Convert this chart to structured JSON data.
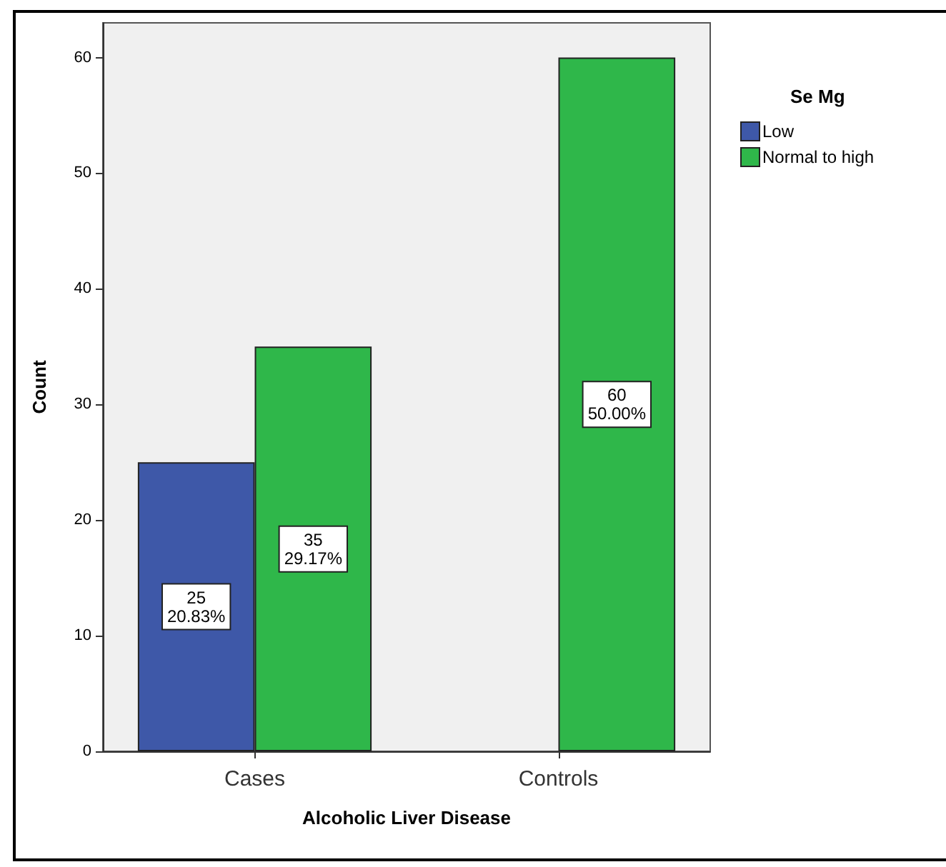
{
  "chart_data": {
    "type": "bar",
    "xlabel": "Alcoholic Liver Disease",
    "ylabel": "Count",
    "legend_title": "Se Mg",
    "categories": [
      "Cases",
      "Controls"
    ],
    "series": [
      {
        "name": "Low",
        "color": "#3e58a8",
        "values": [
          25,
          null
        ],
        "value_labels": [
          "25\n20.83%",
          null
        ]
      },
      {
        "name": "Normal to high",
        "color": "#2fb74a",
        "values": [
          35,
          60
        ],
        "value_labels": [
          "35\n29.17%",
          "60\n50.00%"
        ]
      }
    ],
    "ylim": [
      0,
      63
    ],
    "yticks": [
      0,
      10,
      20,
      30,
      40,
      50,
      60
    ],
    "grid": false,
    "legend": "top right"
  }
}
